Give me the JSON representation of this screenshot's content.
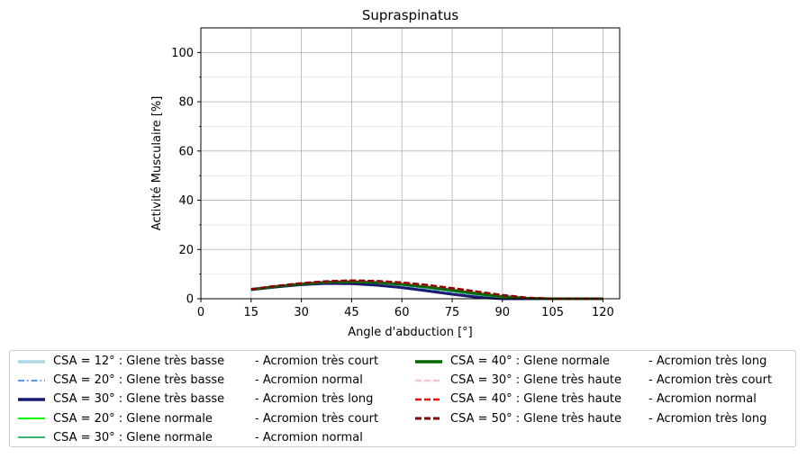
{
  "chart_data": {
    "type": "line",
    "title": "Supraspinatus",
    "xlabel": "Angle d'abduction [°]",
    "ylabel": "Activité Musculaire [%]",
    "xlim": [
      0,
      125
    ],
    "ylim": [
      0,
      110
    ],
    "xticks": [
      0,
      15,
      30,
      45,
      60,
      75,
      90,
      105,
      120
    ],
    "yticks": [
      0,
      20,
      40,
      60,
      80,
      100
    ],
    "grid": true,
    "legend_position": "below",
    "x": [
      15,
      22.5,
      30,
      37.5,
      45,
      52.5,
      60,
      67.5,
      75,
      82.5,
      90,
      97.5,
      105,
      112.5,
      120
    ],
    "series": [
      {
        "name": "CSA = 12° : Glene très basse",
        "suffix": "-  Acromion très court",
        "color": "#add8e6",
        "width": 3,
        "dash": "solid",
        "values": [
          3.6,
          4.8,
          5.8,
          6.4,
          6.5,
          6.1,
          5.3,
          4.0,
          2.6,
          1.3,
          0.4,
          0.0,
          0.0,
          0.0,
          0.0
        ]
      },
      {
        "name": "CSA = 20° : Glene très basse",
        "suffix": "-  Acromion normal",
        "color": "#6495ed",
        "width": 1.5,
        "dash": "dashdot",
        "values": [
          3.6,
          4.8,
          5.8,
          6.4,
          6.4,
          6.0,
          5.1,
          3.8,
          2.4,
          1.1,
          0.3,
          0.0,
          0.0,
          0.0,
          0.0
        ]
      },
      {
        "name": "CSA = 30° : Glene très basse",
        "suffix": "-  Acromion très long",
        "color": "#191970",
        "width": 3,
        "dash": "solid",
        "values": [
          3.7,
          4.8,
          5.7,
          6.2,
          6.1,
          5.5,
          4.5,
          3.2,
          1.8,
          0.6,
          0.0,
          0.0,
          0.0,
          0.0,
          0.0
        ]
      },
      {
        "name": "CSA = 20° : Glene normale",
        "suffix": "-  Acromion très court",
        "color": "#00ff00",
        "width": 1.5,
        "dash": "solid",
        "values": [
          3.7,
          5.0,
          6.0,
          6.7,
          6.9,
          6.6,
          5.9,
          4.7,
          3.4,
          2.0,
          0.9,
          0.2,
          0.0,
          0.0,
          0.0
        ]
      },
      {
        "name": "CSA = 30° : Glene normale",
        "suffix": "-  Acromion normal",
        "color": "#3cb371",
        "width": 1.5,
        "dash": "solid",
        "values": [
          3.7,
          4.9,
          5.9,
          6.5,
          6.7,
          6.3,
          5.5,
          4.3,
          2.9,
          1.5,
          0.5,
          0.0,
          0.0,
          0.0,
          0.0
        ]
      },
      {
        "name": "CSA = 40° : Glene normale",
        "suffix": "-  Acromion très long",
        "color": "#006400",
        "width": 3,
        "dash": "solid",
        "values": [
          3.8,
          5.0,
          6.0,
          6.7,
          6.9,
          6.6,
          5.9,
          4.8,
          3.5,
          2.1,
          0.9,
          0.2,
          0.0,
          0.0,
          0.0
        ]
      },
      {
        "name": "CSA = 30° : Glene très haute",
        "suffix": "-  Acromion très court",
        "color": "#ffc0cb",
        "width": 2,
        "dash": "dashed",
        "values": [
          3.9,
          5.2,
          6.3,
          7.0,
          7.3,
          7.1,
          6.5,
          5.5,
          4.2,
          2.8,
          1.4,
          0.4,
          0.0,
          0.0,
          0.0
        ]
      },
      {
        "name": "CSA = 40° : Glene très haute",
        "suffix": "-  Acromion normal",
        "color": "#ff0000",
        "width": 2,
        "dash": "dashed",
        "values": [
          3.9,
          5.2,
          6.3,
          7.1,
          7.4,
          7.2,
          6.6,
          5.6,
          4.3,
          2.9,
          1.5,
          0.4,
          0.0,
          0.0,
          0.0
        ]
      },
      {
        "name": "CSA = 50° : Glene très haute",
        "suffix": "-  Acromion très long",
        "color": "#8b0000",
        "width": 2.5,
        "dash": "dashed",
        "values": [
          3.9,
          5.2,
          6.3,
          7.1,
          7.4,
          7.2,
          6.6,
          5.6,
          4.3,
          2.9,
          1.5,
          0.4,
          0.0,
          0.0,
          0.0
        ]
      }
    ]
  }
}
